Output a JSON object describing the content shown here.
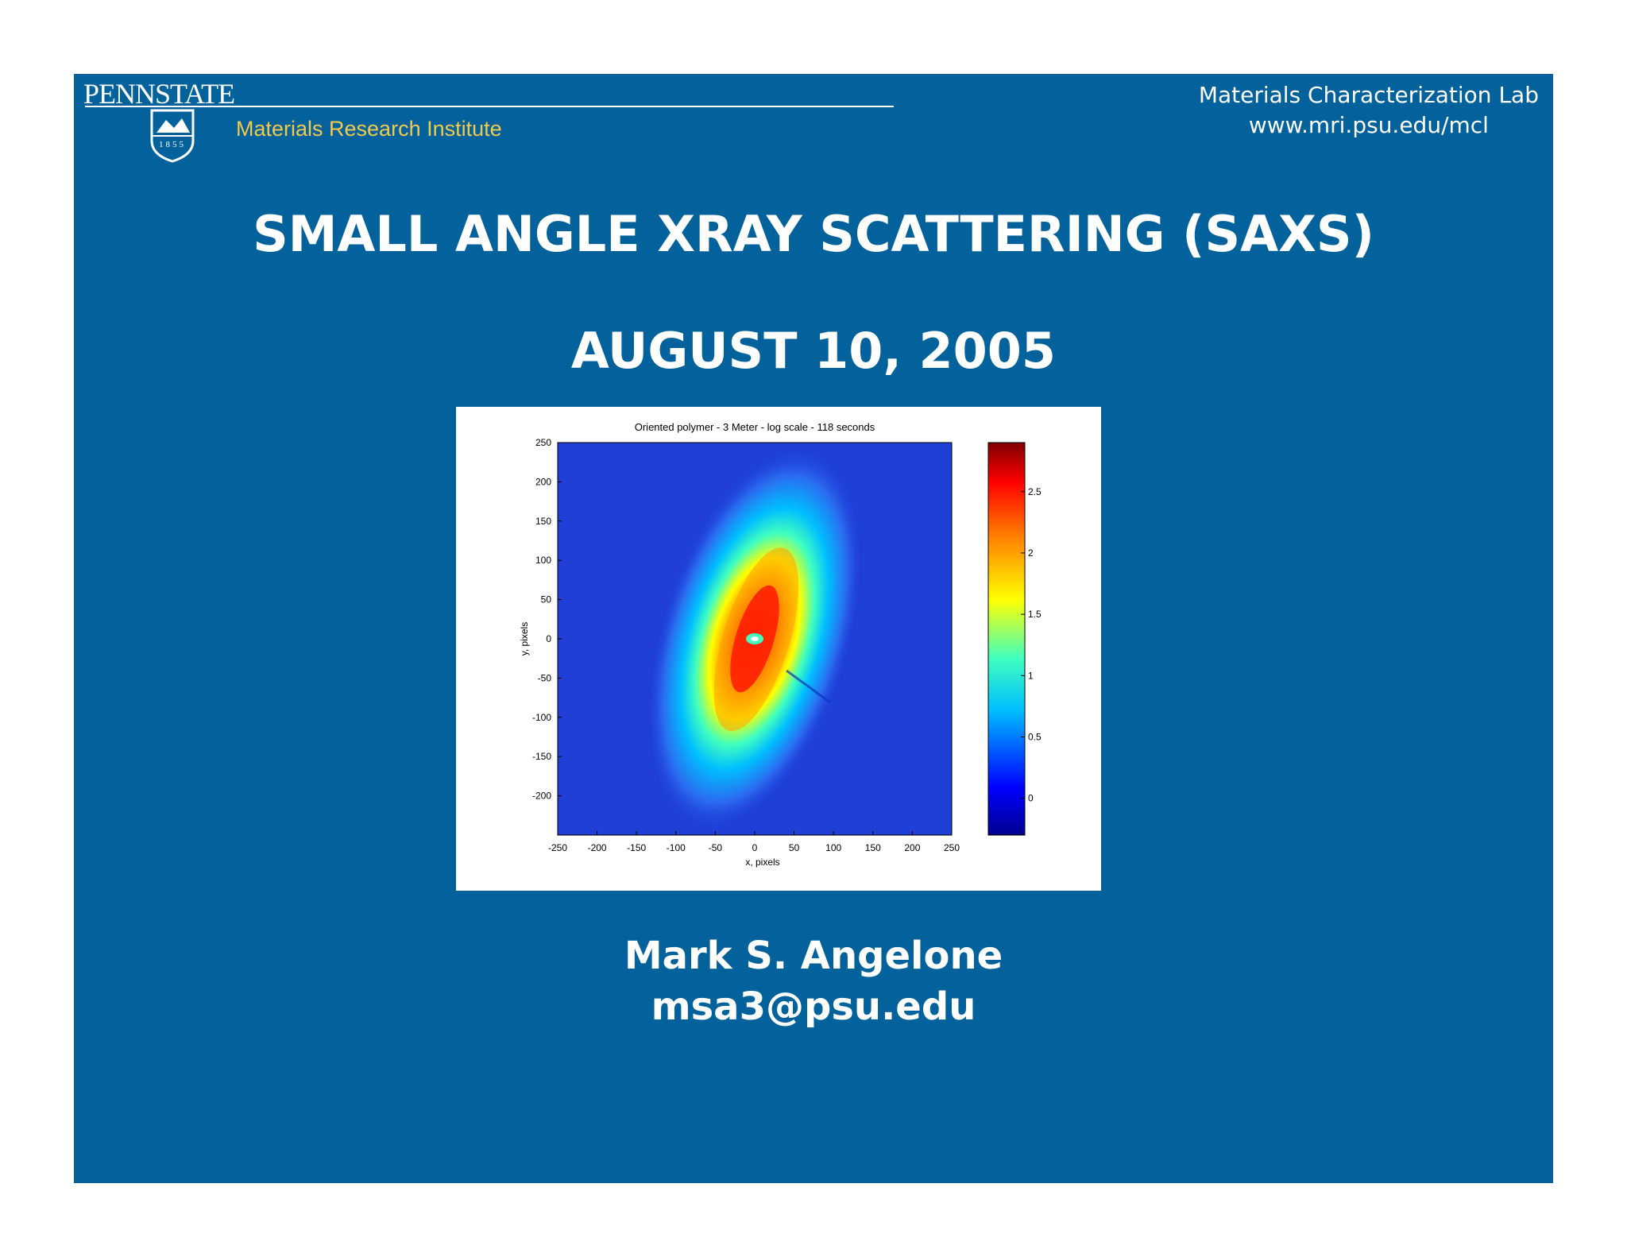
{
  "header": {
    "logo_text": "PENNSTATE",
    "logo_year": "1855",
    "institute": "Materials Research Institute",
    "lab_name": "Materials Characterization Lab",
    "lab_url": "www.mri.psu.edu/mcl"
  },
  "slide": {
    "title": "SMALL ANGLE XRAY SCATTERING (SAXS)",
    "date": "AUGUST 10, 2005",
    "author_name": "Mark S. Angelone",
    "author_email": "msa3@psu.edu"
  },
  "chart_data": {
    "type": "heatmap",
    "title": "Oriented polymer - 3 Meter - log scale - 118 seconds",
    "xlabel": "x, pixels",
    "ylabel": "y, pixels",
    "xlim": [
      -250,
      250
    ],
    "ylim": [
      -250,
      250
    ],
    "x_ticks": [
      -250,
      -200,
      -150,
      -100,
      -50,
      0,
      50,
      100,
      150,
      200,
      250
    ],
    "y_ticks": [
      250,
      200,
      150,
      100,
      50,
      0,
      -50,
      -100,
      -150,
      -200
    ],
    "colorbar_ticks": [
      "2.5",
      "2",
      "1.5",
      "1",
      "0.5",
      "0"
    ],
    "colorbar_range": [
      -0.3,
      2.9
    ],
    "colormap": [
      "#00008f",
      "#0000ff",
      "#00bfff",
      "#40ffbf",
      "#ffff00",
      "#ff8000",
      "#ff0000",
      "#800000"
    ],
    "background_color": "#1f3fd6"
  }
}
